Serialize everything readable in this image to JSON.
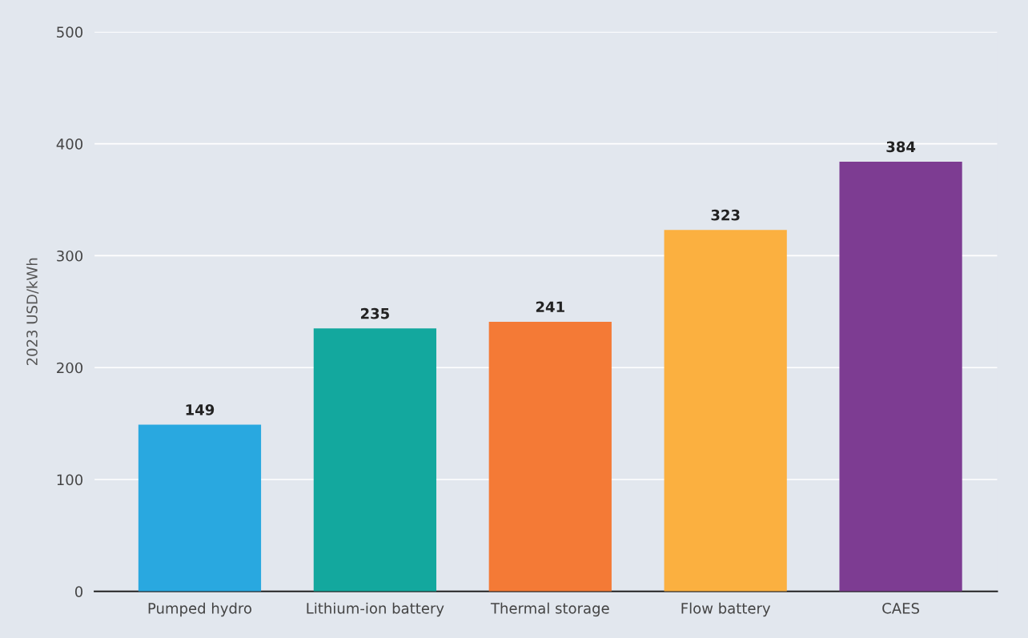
{
  "chart_data": {
    "type": "bar",
    "ylabel": "2023 USD/kWh",
    "categories": [
      "Pumped hydro",
      "Lithium-ion battery",
      "Thermal storage",
      "Flow battery",
      "CAES"
    ],
    "values": [
      149,
      235,
      241,
      323,
      384
    ],
    "colors": [
      "#29a8e0",
      "#13a89e",
      "#f47a36",
      "#fbb040",
      "#7d3c92"
    ],
    "ylim": [
      0,
      500
    ],
    "yticks": [
      0,
      100,
      200,
      300,
      400,
      500
    ],
    "grid": "y",
    "data_labels": true
  }
}
